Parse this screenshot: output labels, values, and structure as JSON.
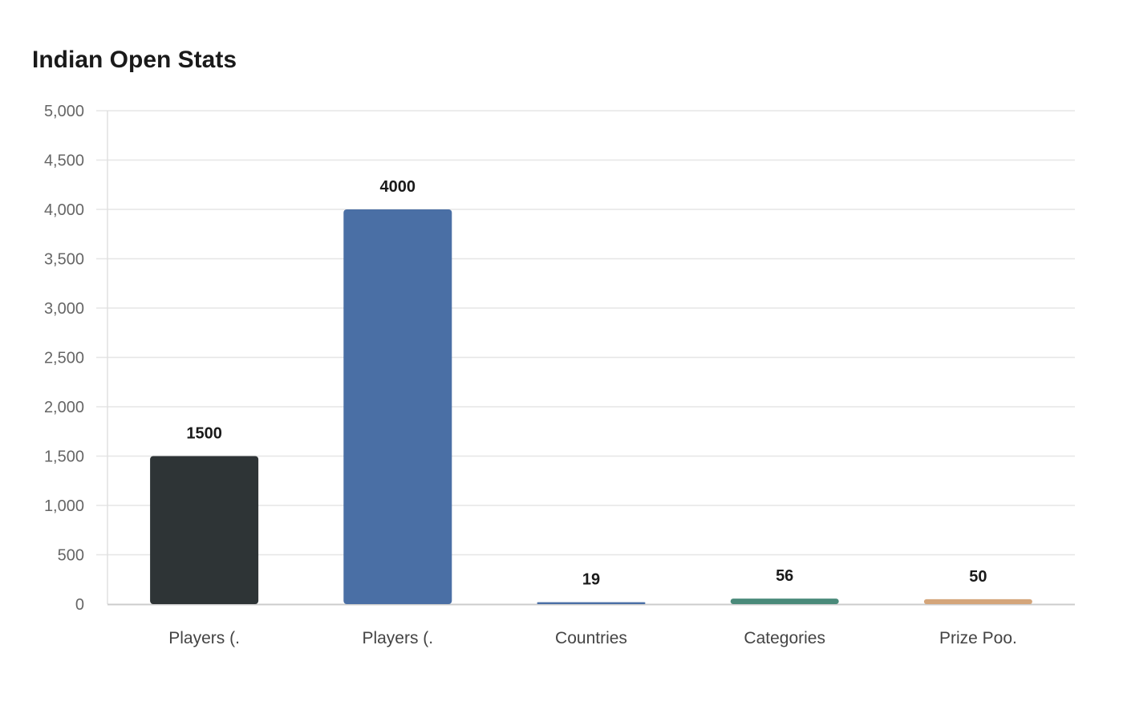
{
  "chart_data": {
    "type": "bar",
    "title": "Indian Open Stats",
    "categories": [
      "Players (.",
      "Players (.",
      "Countries",
      "Categories",
      "Prize Poo."
    ],
    "values": [
      1500,
      4000,
      19,
      56,
      50
    ],
    "data_labels": [
      "1500",
      "4000",
      "19",
      "56",
      "50"
    ],
    "bar_colors": [
      "#2e3436",
      "#4a6fa5",
      "#4a6fa5",
      "#4a8a7a",
      "#d4a57a"
    ],
    "ylim": [
      0,
      5000
    ],
    "yticks": [
      0,
      500,
      1000,
      1500,
      2000,
      2500,
      3000,
      3500,
      4000,
      4500,
      5000
    ],
    "ytick_labels": [
      "0",
      "500",
      "1,000",
      "1,500",
      "2,000",
      "2,500",
      "3,000",
      "3,500",
      "4,000",
      "4,500",
      "5,000"
    ],
    "xlabel": "",
    "ylabel": "",
    "grid": true,
    "legend": "none"
  }
}
